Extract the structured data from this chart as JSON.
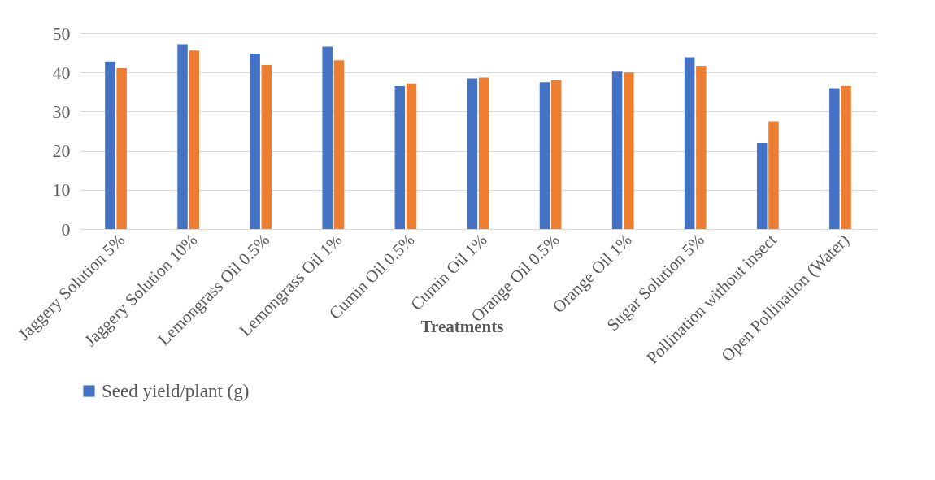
{
  "chart_data": {
    "type": "bar",
    "xlabel": "Treatments",
    "categories": [
      "Jaggery Solution   5%",
      "Jaggery Solution   10%",
      "Lemongrass Oil   0.5%",
      "Lemongrass Oil   1%",
      "Cumin Oil   0.5%",
      "Cumin Oil   1%",
      "Orange Oil   0.5%",
      "Orange Oil   1%",
      "Sugar Solution   5%",
      "Pollination without insect",
      "Open Pollination (Water)"
    ],
    "series": [
      {
        "name": "Seed yield/plant (g)",
        "color": "#4472c4",
        "values": [
          42.8,
          47.2,
          44.8,
          46.6,
          36.5,
          38.5,
          37.5,
          40.2,
          43.9,
          22.0,
          36.0
        ]
      },
      {
        "color": "#ed7d31",
        "values": [
          41.1,
          45.6,
          41.9,
          43.1,
          37.2,
          38.7,
          38.0,
          40.0,
          41.7,
          27.5,
          36.5
        ]
      }
    ],
    "ylim": [
      0,
      50
    ],
    "yticks": [
      0,
      10,
      20,
      30,
      40,
      50
    ],
    "grid": "y",
    "legend": "bottom"
  }
}
